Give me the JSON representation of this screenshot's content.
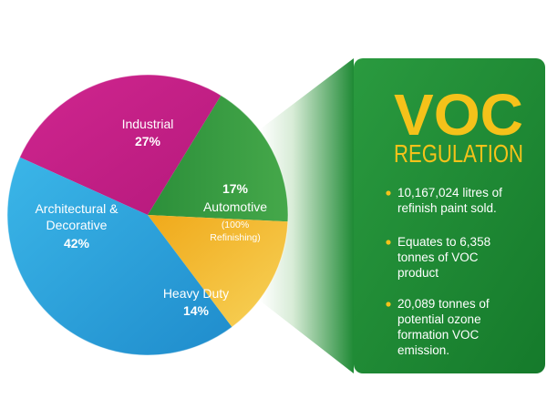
{
  "chart_data": {
    "type": "pie",
    "title": "",
    "slices": [
      {
        "name": "Industrial",
        "value": 27,
        "value_label": "27%",
        "color": "#c81f8c"
      },
      {
        "name": "Automotive",
        "value": 17,
        "value_label": "17%",
        "note": "(100% Refinishing)",
        "color": "#2e9a3e"
      },
      {
        "name": "Heavy Duty",
        "value": 14,
        "value_label": "14%",
        "color": "#f2b21b"
      },
      {
        "name": "Architectural & Decorative",
        "value": 42,
        "value_label": "42%",
        "color": "#2ea3dd"
      }
    ],
    "labels": {
      "industrial": {
        "name": "Industrial",
        "pct": "27%"
      },
      "automotive": {
        "pct": "17%",
        "name": "Automotive",
        "note_line1": "(100%",
        "note_line2": "Refinishing)"
      },
      "heavy": {
        "name": "Heavy Duty",
        "pct": "14%"
      },
      "architectural": {
        "name_line1": "Architectural &",
        "name_line2": "Decorative",
        "pct": "42%"
      }
    }
  },
  "panel": {
    "title_big": "VOC",
    "title_small": "REGULATION",
    "accent_color": "#f5c21a",
    "background_color": "#1f8a35",
    "bullets": [
      {
        "lines": [
          "10,167,024 litres of",
          "refinish paint sold."
        ]
      },
      {
        "lines": [
          "Equates to 6,358",
          "tonnes of VOC",
          "product"
        ]
      },
      {
        "lines": [
          "20,089 tonnes of",
          "potential ozone",
          "formation VOC",
          "emission."
        ]
      }
    ]
  }
}
